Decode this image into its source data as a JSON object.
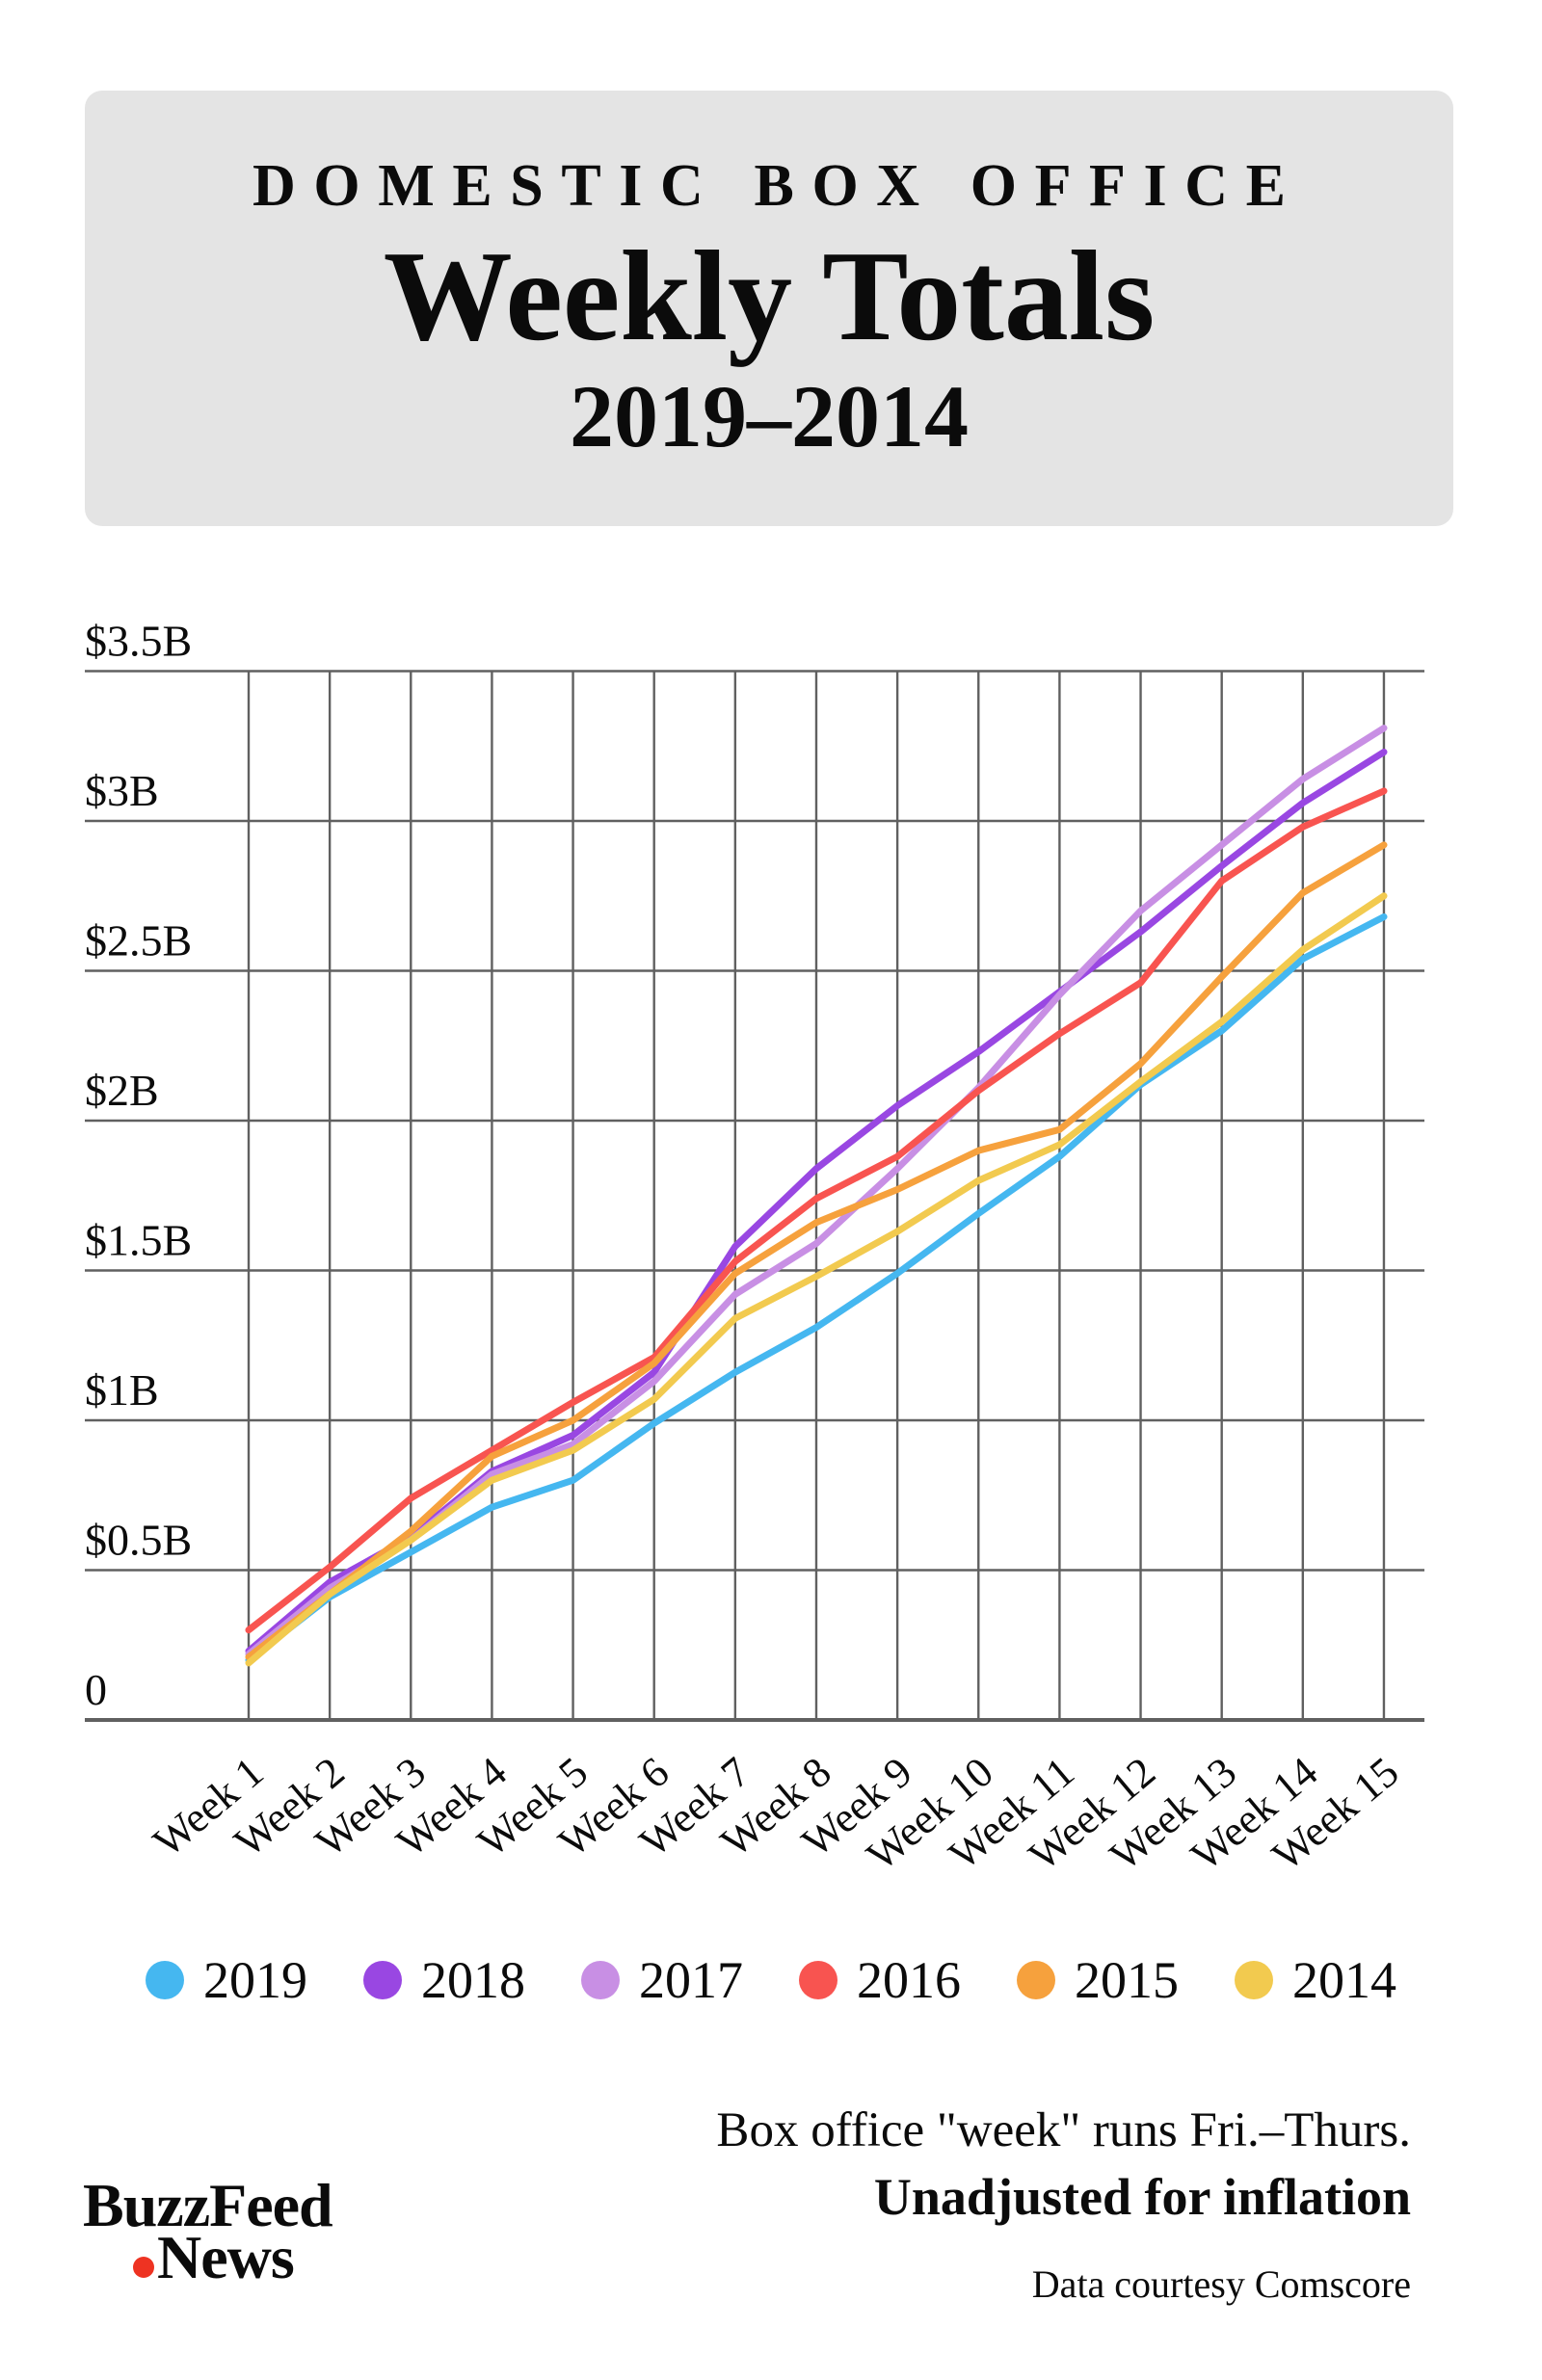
{
  "title": {
    "kicker": "DOMESTIC BOX OFFICE",
    "main": "Weekly Totals",
    "sub": "2019–2014"
  },
  "chart_data": {
    "type": "line",
    "x": [
      "Week 1",
      "Week 2",
      "Week 3",
      "Week 4",
      "Week 5",
      "Week 6",
      "Week 7",
      "Week 8",
      "Week 9",
      "Week 10",
      "Week 11",
      "Week 12",
      "Week 13",
      "Week 14",
      "Week 15"
    ],
    "y_ticks": [
      {
        "label": "$3.5B",
        "value": 3.5
      },
      {
        "label": "$3B",
        "value": 3.0
      },
      {
        "label": "$2.5B",
        "value": 2.5
      },
      {
        "label": "$2B",
        "value": 2.0
      },
      {
        "label": "$1.5B",
        "value": 1.5
      },
      {
        "label": "$1B",
        "value": 1.0
      },
      {
        "label": "$0.5B",
        "value": 0.5
      },
      {
        "label": "0",
        "value": 0.0
      }
    ],
    "ylim": [
      0,
      3.5
    ],
    "grid": true,
    "legend_position": "bottom",
    "units": "billions USD, cumulative weekly totals",
    "series": [
      {
        "name": "2019",
        "color": "#45b7f0",
        "values": [
          0.2,
          0.41,
          0.56,
          0.71,
          0.8,
          0.99,
          1.16,
          1.31,
          1.49,
          1.69,
          1.88,
          2.12,
          2.3,
          2.54,
          2.68
        ]
      },
      {
        "name": "2018",
        "color": "#9947e2",
        "values": [
          0.23,
          0.46,
          0.61,
          0.83,
          0.95,
          1.16,
          1.58,
          1.84,
          2.05,
          2.23,
          2.43,
          2.63,
          2.85,
          3.06,
          3.23
        ]
      },
      {
        "name": "2017",
        "color": "#c88fe4",
        "values": [
          0.22,
          0.44,
          0.6,
          0.82,
          0.92,
          1.13,
          1.42,
          1.59,
          1.84,
          2.11,
          2.42,
          2.7,
          2.92,
          3.14,
          3.31
        ]
      },
      {
        "name": "2016",
        "color": "#f85450",
        "values": [
          0.3,
          0.51,
          0.74,
          0.9,
          1.06,
          1.21,
          1.53,
          1.74,
          1.88,
          2.1,
          2.29,
          2.46,
          2.8,
          2.98,
          3.1
        ]
      },
      {
        "name": "2015",
        "color": "#f6a13d",
        "values": [
          0.21,
          0.42,
          0.63,
          0.88,
          1.0,
          1.19,
          1.49,
          1.66,
          1.77,
          1.9,
          1.97,
          2.19,
          2.48,
          2.76,
          2.92
        ]
      },
      {
        "name": "2014",
        "color": "#f2ca4f",
        "values": [
          0.19,
          0.42,
          0.6,
          0.8,
          0.9,
          1.07,
          1.34,
          1.48,
          1.63,
          1.8,
          1.92,
          2.13,
          2.33,
          2.57,
          2.75
        ]
      }
    ],
    "gridline_color": "#606060",
    "axis_text_color": "#0b0b0b"
  },
  "footer": {
    "note1": "Box office \"week\" runs Fri.–Thurs.",
    "note2": "Unadjusted for inflation",
    "credit": "Data courtesy Comscore"
  },
  "logo": {
    "line1": "BuzzFeed",
    "line2": "News",
    "dot_color": "#ee3322"
  }
}
